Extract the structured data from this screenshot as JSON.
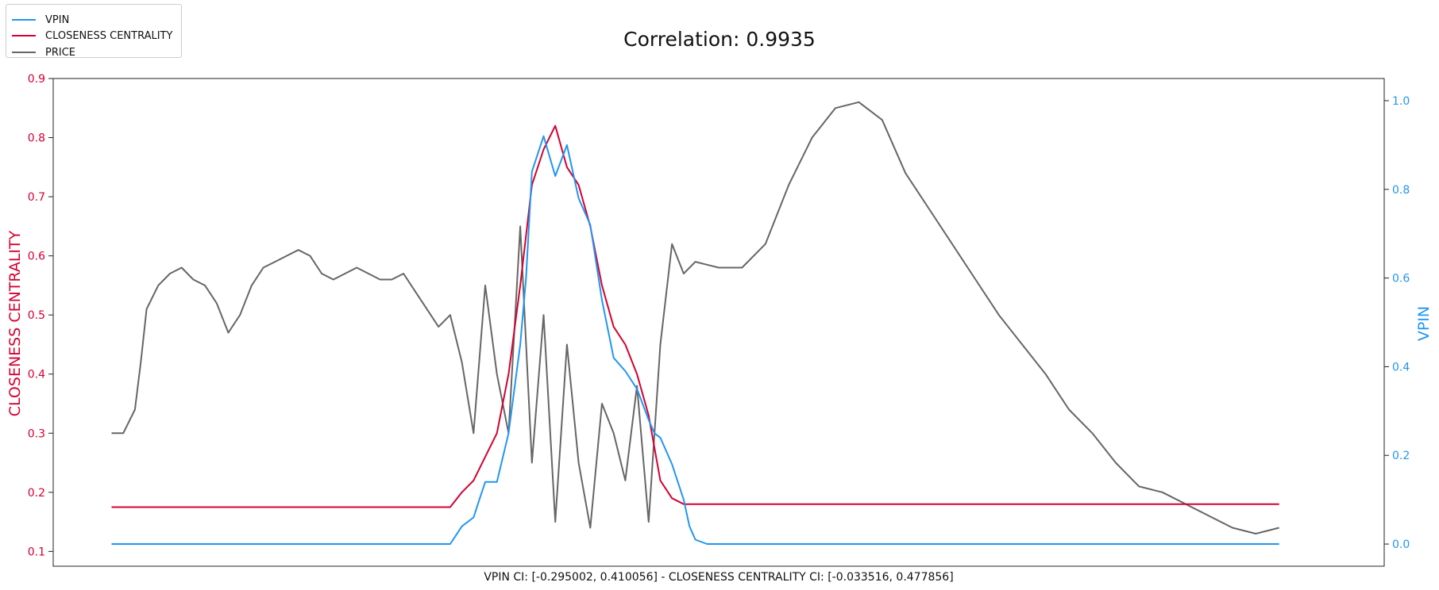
{
  "chart_data": {
    "type": "line",
    "title": "Correlation: 0.9935",
    "xlabel": "VPIN CI: [-0.295002, 0.410056] - CLOSENESS CENTRALITY CI: [-0.033516, 0.477856]",
    "ylabel_left": "CLOSENESS CENTRALITY",
    "ylabel_right": "VPIN",
    "ylim_left": [
      0.075,
      0.9
    ],
    "ylim_right": [
      -0.05,
      1.05
    ],
    "yticks_left": [
      0.1,
      0.2,
      0.3,
      0.4,
      0.5,
      0.6,
      0.7,
      0.8,
      0.9
    ],
    "yticks_right": [
      0.0,
      0.2,
      0.4,
      0.6,
      0.8,
      1.0
    ],
    "ytick_labels_left": [
      "0.1",
      "0.2",
      "0.3",
      "0.4",
      "0.5",
      "0.6",
      "0.7",
      "0.8",
      "0.9"
    ],
    "ytick_labels_right": [
      "0.0",
      "0.2",
      "0.4",
      "0.6",
      "0.8",
      "1.0"
    ],
    "xlim": [
      -5,
      109
    ],
    "grid": false,
    "legend_position": "top-left, outside plot",
    "series": [
      {
        "name": "VPIN",
        "axis": "right",
        "color": "#2196f3",
        "x": [
          0,
          29,
          29.5,
          30,
          31,
          31.5,
          32,
          33,
          34,
          35,
          35.5,
          36,
          37,
          38,
          39,
          40,
          41,
          42,
          43,
          44,
          45,
          46,
          46.5,
          47,
          48,
          49,
          49.5,
          50,
          51,
          52,
          53,
          54,
          55,
          56,
          100
        ],
        "y": [
          0,
          0,
          0.02,
          0.04,
          0.06,
          0.1,
          0.14,
          0.14,
          0.25,
          0.45,
          0.6,
          0.84,
          0.92,
          0.83,
          0.9,
          0.78,
          0.72,
          0.55,
          0.42,
          0.39,
          0.35,
          0.28,
          0.25,
          0.24,
          0.18,
          0.1,
          0.04,
          0.01,
          0,
          0,
          0,
          0,
          0,
          0,
          0
        ]
      },
      {
        "name": "CLOSENESS CENTRALITY",
        "axis": "left",
        "color": "#d50032",
        "x": [
          0,
          29,
          30,
          31,
          32,
          33,
          34,
          35,
          36,
          37,
          38,
          39,
          40,
          41,
          42,
          43,
          44,
          45,
          46,
          47,
          48,
          49,
          50,
          100
        ],
        "y": [
          0.175,
          0.175,
          0.2,
          0.22,
          0.26,
          0.3,
          0.4,
          0.55,
          0.72,
          0.78,
          0.82,
          0.75,
          0.72,
          0.65,
          0.55,
          0.48,
          0.45,
          0.4,
          0.33,
          0.22,
          0.19,
          0.18,
          0.18,
          0.18
        ]
      },
      {
        "name": "PRICE",
        "axis": "left",
        "color": "#666666",
        "x": [
          0,
          1,
          2,
          2.5,
          3,
          4,
          5,
          6,
          7,
          8,
          9,
          10,
          11,
          12,
          13,
          14,
          15,
          16,
          17,
          18,
          19,
          20,
          21,
          22,
          23,
          24,
          25,
          26,
          27,
          28,
          29,
          30,
          31,
          32,
          33,
          34,
          35,
          36,
          37,
          38,
          39,
          40,
          41,
          42,
          43,
          44,
          45,
          46,
          47,
          48,
          49,
          50,
          52,
          54,
          56,
          58,
          60,
          62,
          64,
          66,
          68,
          70,
          72,
          74,
          76,
          78,
          80,
          82,
          84,
          86,
          88,
          90,
          92,
          94,
          96,
          98,
          100
        ],
        "y": [
          0.3,
          0.3,
          0.34,
          0.42,
          0.51,
          0.55,
          0.57,
          0.58,
          0.56,
          0.55,
          0.52,
          0.47,
          0.5,
          0.55,
          0.58,
          0.59,
          0.6,
          0.61,
          0.6,
          0.57,
          0.56,
          0.57,
          0.58,
          0.57,
          0.56,
          0.56,
          0.57,
          0.54,
          0.51,
          0.48,
          0.5,
          0.42,
          0.3,
          0.55,
          0.4,
          0.3,
          0.65,
          0.25,
          0.5,
          0.15,
          0.45,
          0.25,
          0.14,
          0.35,
          0.3,
          0.22,
          0.38,
          0.15,
          0.45,
          0.62,
          0.57,
          0.59,
          0.58,
          0.58,
          0.62,
          0.72,
          0.8,
          0.85,
          0.86,
          0.83,
          0.74,
          0.68,
          0.62,
          0.56,
          0.5,
          0.45,
          0.4,
          0.34,
          0.3,
          0.25,
          0.21,
          0.2,
          0.18,
          0.16,
          0.14,
          0.13,
          0.14
        ]
      }
    ]
  }
}
